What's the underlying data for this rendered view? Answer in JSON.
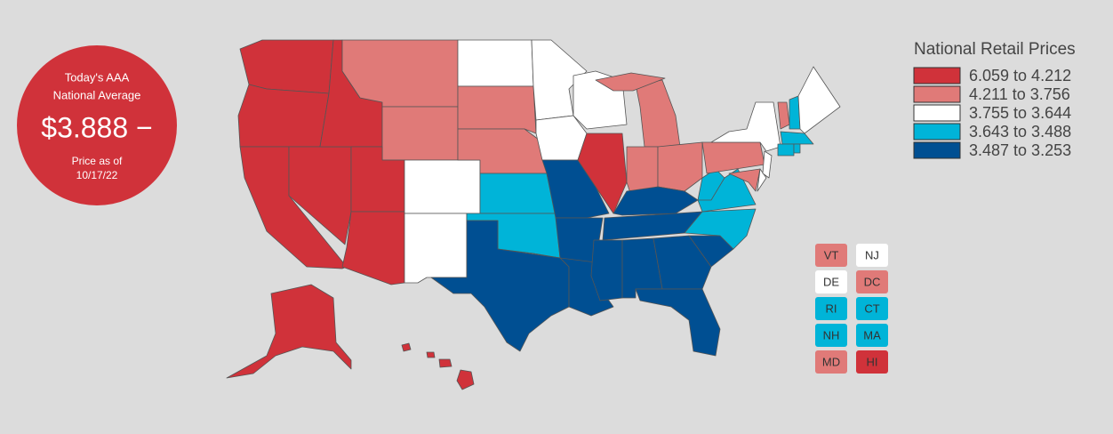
{
  "badge": {
    "heading": [
      "Today's AAA",
      "National Average"
    ],
    "price": "$3.888 −",
    "date_lines": [
      "Price as of",
      "10/17/22"
    ]
  },
  "legend": {
    "title": "National Retail Prices",
    "items": [
      {
        "label": "6.059 to 4.212",
        "color": "#d0323a"
      },
      {
        "label": "4.211 to 3.756",
        "color": "#e07a78"
      },
      {
        "label": "3.755 to 3.644",
        "color": "#ffffff"
      },
      {
        "label": "3.643 to 3.488",
        "color": "#00b4d8"
      },
      {
        "label": "3.487 to 3.253",
        "color": "#004f92"
      }
    ]
  },
  "small_states": [
    {
      "label": "VT",
      "color": "#e07a78"
    },
    {
      "label": "NJ",
      "color": "#ffffff"
    },
    {
      "label": "DE",
      "color": "#ffffff"
    },
    {
      "label": "DC",
      "color": "#e07a78"
    },
    {
      "label": "RI",
      "color": "#00b4d8"
    },
    {
      "label": "CT",
      "color": "#00b4d8"
    },
    {
      "label": "NH",
      "color": "#00b4d8"
    },
    {
      "label": "MA",
      "color": "#00b4d8"
    },
    {
      "label": "MD",
      "color": "#e07a78"
    },
    {
      "label": "HI",
      "color": "#d0323a"
    }
  ]
}
